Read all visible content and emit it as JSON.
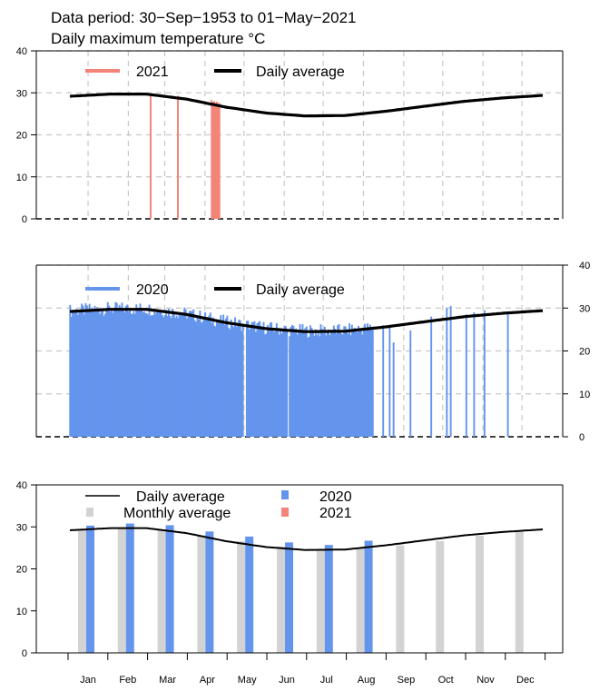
{
  "header": {
    "line1": "Data period:  30−Sep−1953  to  01−May−2021",
    "line2": "Daily maximum temperature °C"
  },
  "colors": {
    "y2021": "#F48477",
    "y2020": "#6495ED",
    "daily_average": "#000000",
    "monthly_average": "#D3D3D3",
    "grid": "#C8C8C8"
  },
  "chart_data": [
    {
      "type": "line",
      "panel": "top",
      "y_ticks": [
        "0",
        "10",
        "20",
        "30",
        "40"
      ],
      "ylim": [
        0,
        40
      ],
      "xlim": [
        1,
        365
      ],
      "grid": true,
      "legend_placement": "top-left",
      "legend": {
        "year_label": "2021",
        "avg_label": "Daily average"
      },
      "daily_average": {
        "name": "Daily average",
        "x": [
          1,
          32,
          60,
          91,
          121,
          152,
          182,
          213,
          244,
          274,
          305,
          335,
          365
        ],
        "y": [
          29.2,
          29.7,
          29.7,
          28.5,
          26.6,
          25.2,
          24.5,
          24.6,
          25.6,
          26.8,
          28.0,
          28.8,
          29.4
        ]
      },
      "series": [
        {
          "name": "2021",
          "x": [
            63,
            63,
            84,
            84,
            84,
            84,
            110,
            111,
            112,
            113,
            114,
            115,
            116
          ],
          "y": [
            29.5,
            29.2,
            29.3,
            29.0,
            28.6,
            28.2,
            28.3,
            27.8,
            28.0,
            27.6,
            27.9,
            27.4,
            27.6
          ]
        }
      ]
    },
    {
      "type": "bar",
      "panel": "middle",
      "y_ticks": [
        "0",
        "10",
        "20",
        "30",
        "40"
      ],
      "y_axis_side": "right",
      "ylim": [
        0,
        40
      ],
      "xlim": [
        1,
        365
      ],
      "grid": true,
      "legend_placement": "top-left",
      "legend": {
        "year_label": "2020",
        "avg_label": "Daily average"
      },
      "daily_average": {
        "name": "Daily average",
        "x": [
          1,
          32,
          60,
          91,
          121,
          152,
          182,
          213,
          244,
          274,
          305,
          335,
          365
        ],
        "y": [
          29.2,
          29.7,
          29.7,
          28.5,
          26.6,
          25.2,
          24.5,
          24.6,
          25.6,
          26.8,
          28.0,
          28.8,
          29.4
        ]
      },
      "series": [
        {
          "name": "2020",
          "range1": [
            1,
            134
          ],
          "range2": [
            137,
            168
          ],
          "range3": [
            170,
            234
          ],
          "extra_x": [
            242,
            247,
            250,
            263,
            279,
            291,
            294,
            306,
            312,
            320,
            338
          ],
          "extra_y": [
            26.0,
            25.5,
            22.0,
            24.8,
            28.0,
            30.0,
            30.5,
            28.5,
            29.0,
            29.5,
            29.0
          ]
        }
      ]
    },
    {
      "type": "bar",
      "panel": "bottom",
      "categories": [
        "Jan",
        "Feb",
        "Mar",
        "Apr",
        "May",
        "Jun",
        "Jul",
        "Aug",
        "Sep",
        "Oct",
        "Nov",
        "Dec"
      ],
      "y_ticks": [
        "0",
        "10",
        "20",
        "30",
        "40"
      ],
      "ylim": [
        0,
        40
      ],
      "grid": false,
      "legend_placement": "top",
      "legend": {
        "avg_label": "Daily average",
        "monthly_label": "Monthly average",
        "y2020_label": "2020",
        "y2021_label": "2021"
      },
      "series": [
        {
          "name": "Monthly average",
          "values": [
            29.5,
            29.8,
            29.4,
            28.0,
            26.6,
            25.3,
            24.6,
            24.9,
            25.6,
            26.6,
            27.9,
            29.0
          ]
        },
        {
          "name": "2020",
          "values": [
            30.3,
            30.8,
            30.4,
            28.9,
            27.7,
            26.3,
            25.7,
            26.7,
            null,
            null,
            null,
            null
          ]
        },
        {
          "name": "2021",
          "values": [
            null,
            null,
            null,
            null,
            null,
            null,
            null,
            null,
            null,
            null,
            null,
            null
          ]
        }
      ],
      "daily_average": {
        "name": "Daily average",
        "x": [
          1,
          32,
          60,
          91,
          121,
          152,
          182,
          213,
          244,
          274,
          305,
          335,
          365
        ],
        "y": [
          29.2,
          29.7,
          29.7,
          28.5,
          26.6,
          25.2,
          24.5,
          24.6,
          25.6,
          26.8,
          28.0,
          28.8,
          29.4
        ]
      }
    }
  ]
}
